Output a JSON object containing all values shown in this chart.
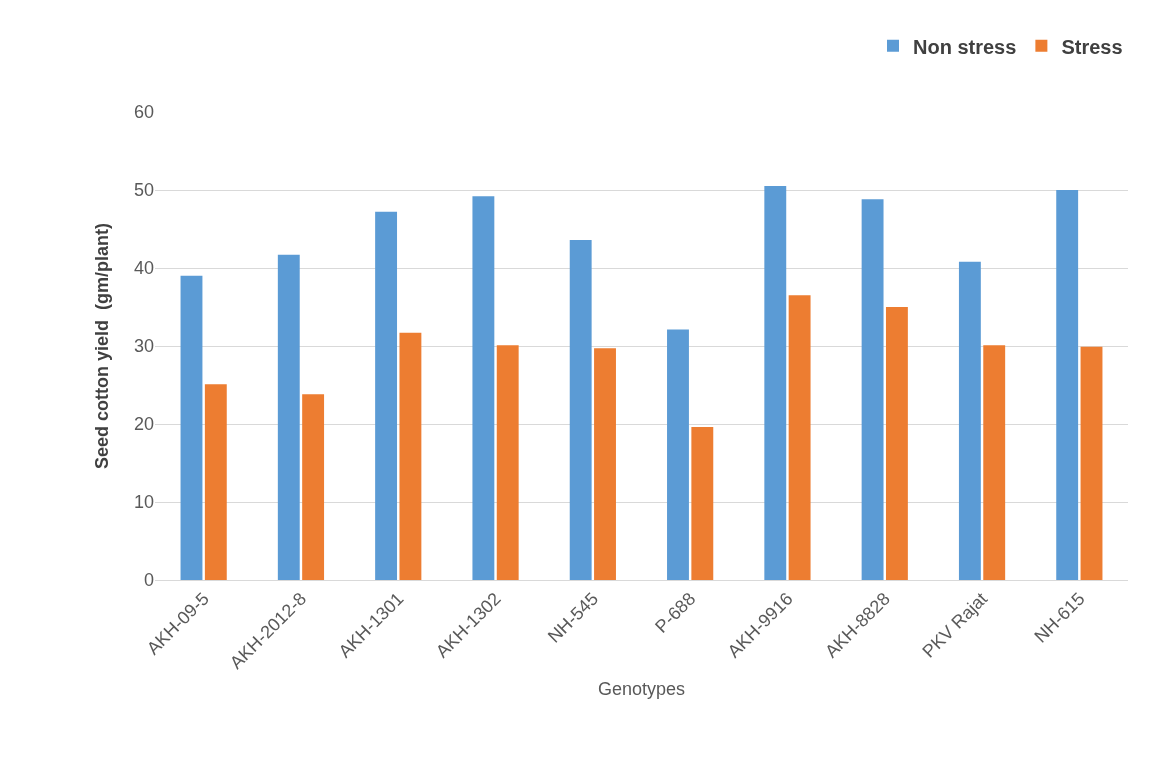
{
  "chart_data": {
    "type": "bar",
    "xlabel": "Genotypes",
    "ylabel": "Seed cotton yield  (gm/plant)",
    "categories": [
      "AKH-09-5",
      "AKH-2012-8",
      "AKH-1301",
      "AKH-1302",
      "NH-545",
      "P-688",
      "AKH-9916",
      "AKH-8828",
      "PKV Rajat",
      "NH-615"
    ],
    "series": [
      {
        "name": "Non stress",
        "color": "#5b9bd5",
        "values": [
          39.0,
          41.7,
          47.2,
          49.2,
          43.6,
          32.1,
          50.5,
          48.8,
          40.8,
          50.0
        ]
      },
      {
        "name": "Stress",
        "color": "#ed7d31",
        "values": [
          25.1,
          23.8,
          31.7,
          30.1,
          29.7,
          19.6,
          36.5,
          35.0,
          30.1,
          29.9
        ]
      }
    ],
    "ylim": [
      0,
      60
    ],
    "yticks": [
      0,
      10,
      20,
      30,
      40,
      50,
      60
    ],
    "grid": "y",
    "legend": "top right"
  }
}
